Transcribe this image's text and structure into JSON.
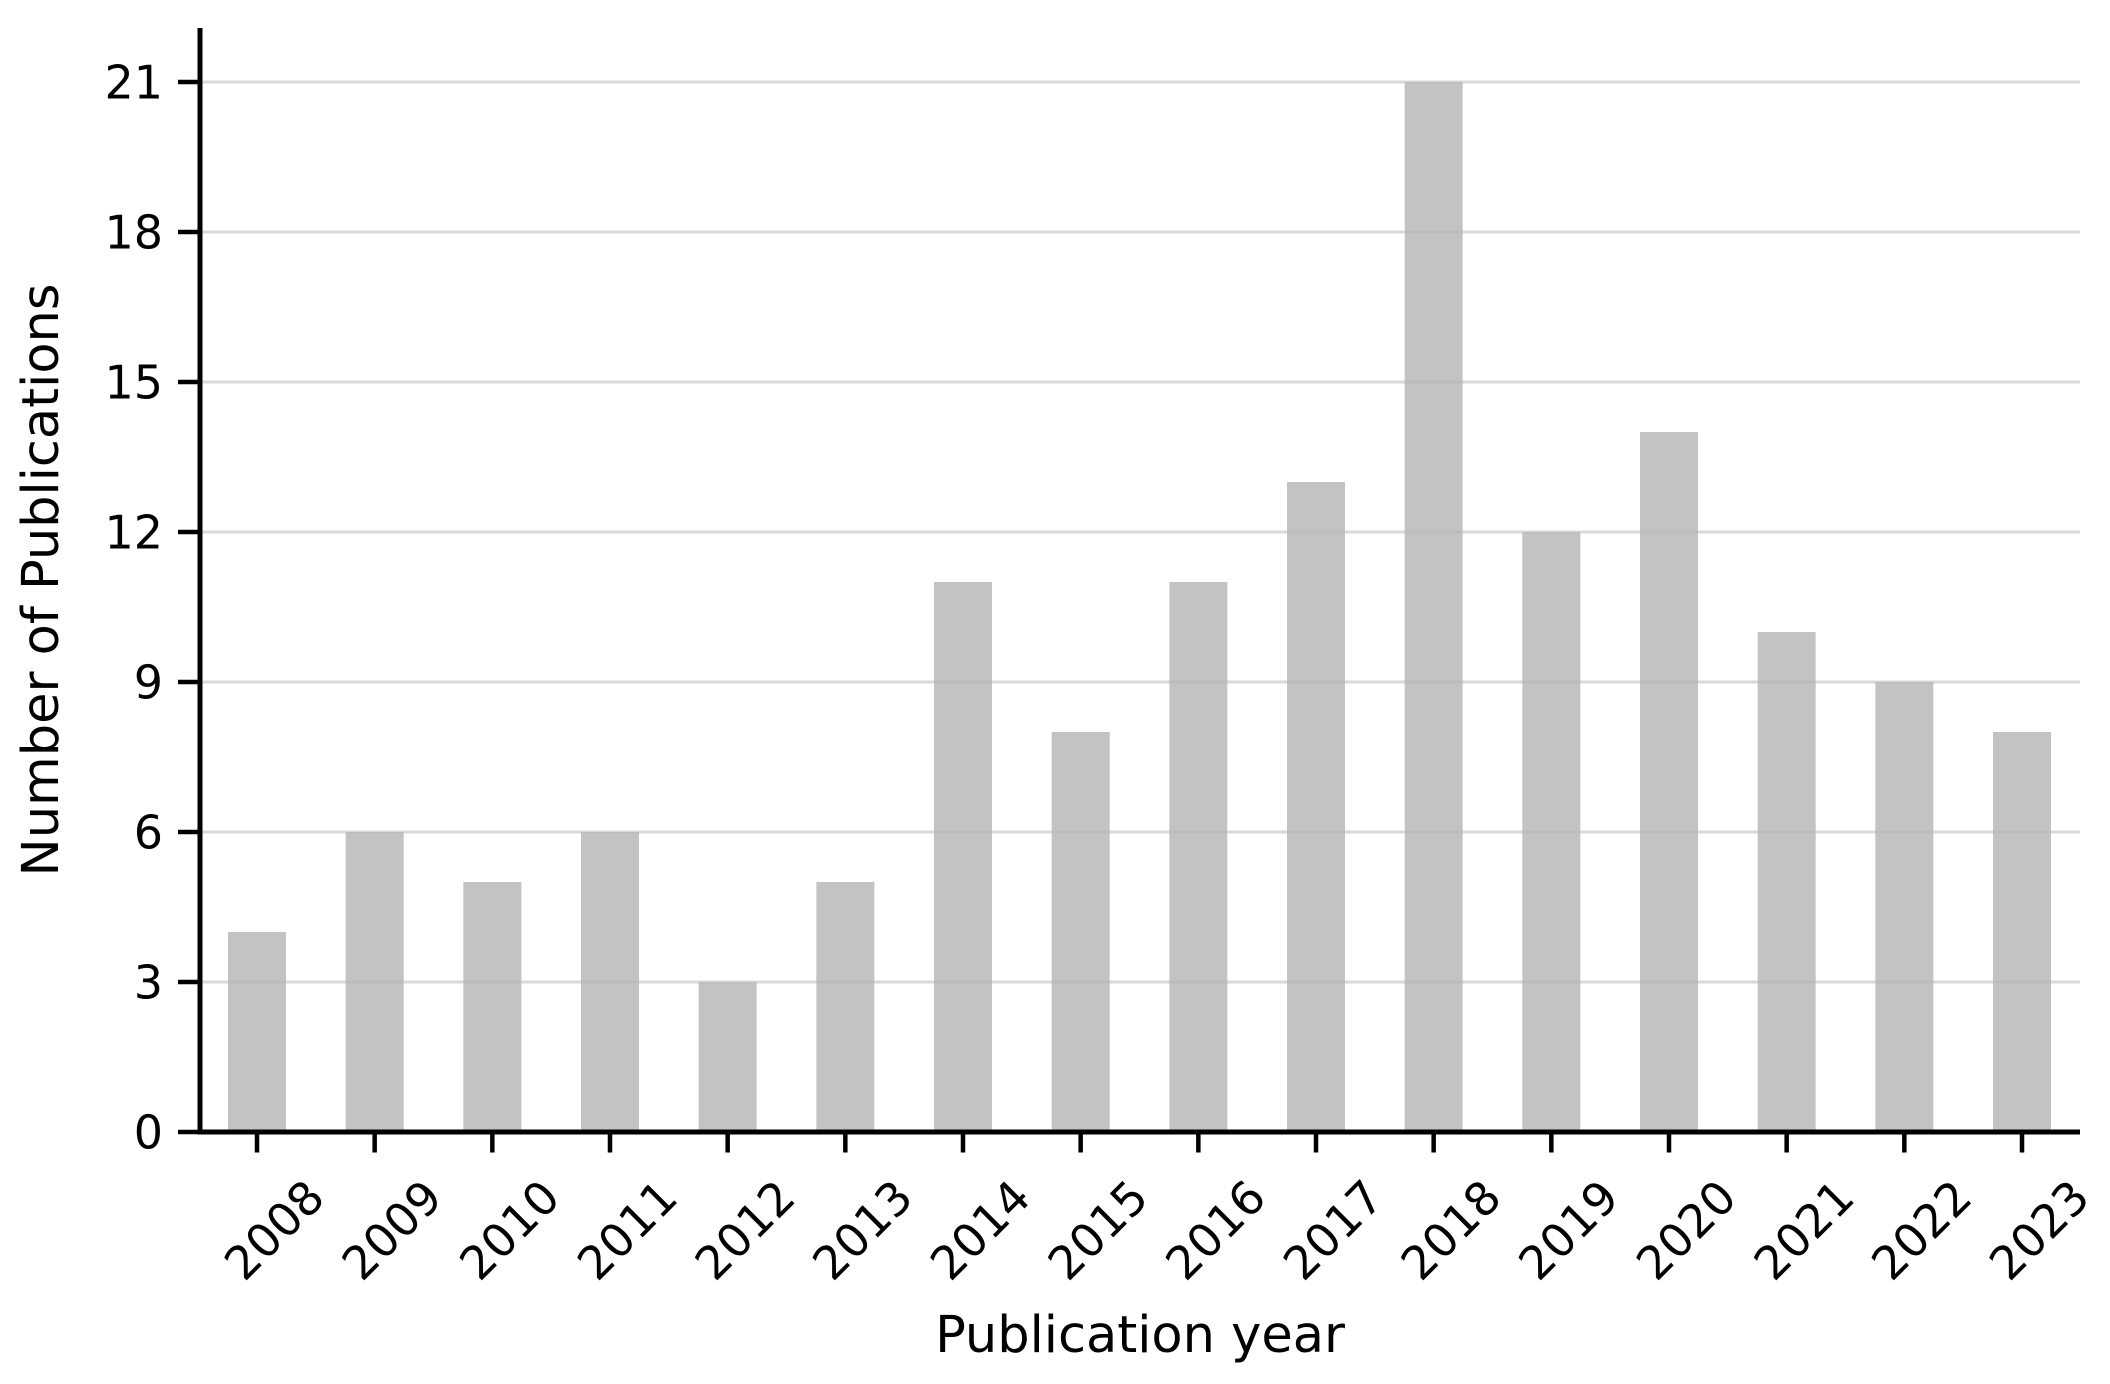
{
  "chart_data": {
    "type": "bar",
    "title": "",
    "xlabel": "Publication year",
    "ylabel": "Number of Publications",
    "categories": [
      "2008",
      "2009",
      "2010",
      "2011",
      "2012",
      "2013",
      "2014",
      "2015",
      "2016",
      "2017",
      "2018",
      "2019",
      "2020",
      "2021",
      "2022",
      "2023"
    ],
    "values": [
      4,
      6,
      5,
      6,
      3,
      5,
      11,
      8,
      11,
      13,
      21,
      12,
      14,
      10,
      9,
      8
    ],
    "series": [
      {
        "name": "Number of Publications",
        "values": [
          4,
          6,
          5,
          6,
          3,
          5,
          11,
          8,
          11,
          13,
          21,
          12,
          14,
          10,
          9,
          8
        ]
      }
    ],
    "yticks": [
      0,
      3,
      6,
      9,
      12,
      15,
      18,
      21
    ],
    "ylim": [
      0,
      22
    ],
    "xtick_rotation_degrees": 45,
    "grid": "horizontal",
    "legend_position": "none",
    "bar_color": "#c3c3c3",
    "grid_color": "#e2e2e2",
    "axis_color": "#000000",
    "label_color": "#000000",
    "background_color": "#ffffff"
  }
}
